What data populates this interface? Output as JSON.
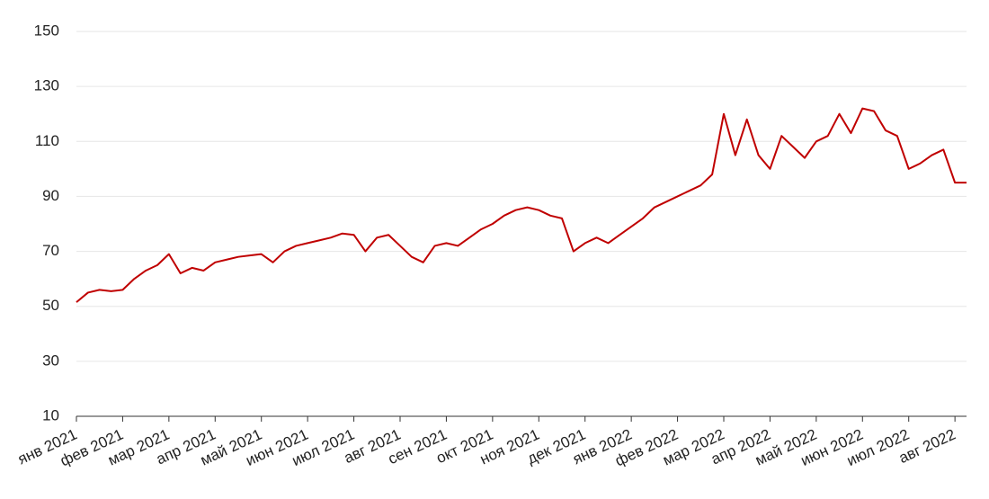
{
  "chart_data": {
    "type": "line",
    "categories": [
      "янв 2021",
      null,
      null,
      null,
      "фев 2021",
      null,
      null,
      null,
      "мар 2021",
      null,
      null,
      null,
      "апр 2021",
      null,
      null,
      null,
      "май 2021",
      null,
      null,
      null,
      "июн 2021",
      null,
      null,
      null,
      "июл 2021",
      null,
      null,
      null,
      "авг 2021",
      null,
      null,
      null,
      "сен 2021",
      null,
      null,
      null,
      "окт 2021",
      null,
      null,
      null,
      "ноя 2021",
      null,
      null,
      null,
      "дек 2021",
      null,
      null,
      null,
      "янв 2022",
      null,
      null,
      null,
      "фев 2022",
      null,
      null,
      null,
      "мар 2022",
      null,
      null,
      null,
      "апр 2022",
      null,
      null,
      null,
      "май 2022",
      null,
      null,
      null,
      "июн 2022",
      null,
      null,
      null,
      "июл 2022",
      null,
      null,
      null,
      "авг 2022",
      null
    ],
    "series": [
      {
        "color": "#c00000",
        "values": [
          51.5,
          55,
          56,
          55.5,
          56,
          60,
          63,
          65,
          69,
          62,
          64,
          63,
          66,
          67,
          68,
          68.5,
          69,
          66,
          70,
          72,
          73,
          74,
          75,
          76.5,
          76,
          70,
          75,
          76,
          72,
          68,
          66,
          72,
          73,
          72,
          75,
          78,
          80,
          83,
          85,
          86,
          85,
          83,
          82,
          70,
          73,
          75,
          73,
          76,
          79,
          82,
          86,
          88,
          90,
          92,
          94,
          98,
          120,
          105,
          118,
          105,
          100,
          112,
          108,
          104,
          110,
          112,
          120,
          113,
          122,
          121,
          114,
          112,
          100,
          102,
          105,
          107,
          95,
          95
        ]
      }
    ],
    "ylim": [
      10,
      150
    ],
    "yticks": [
      10,
      30,
      50,
      70,
      90,
      110,
      130,
      150
    ],
    "grid": true
  }
}
